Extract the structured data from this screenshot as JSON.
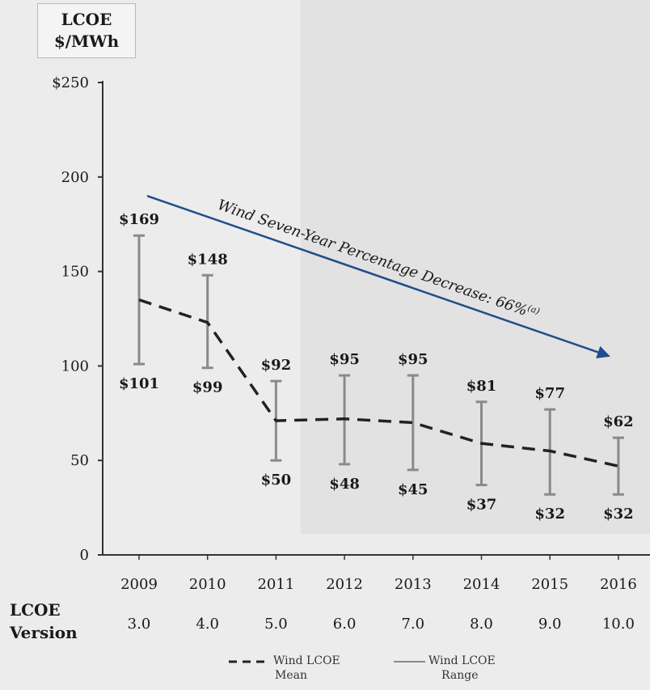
{
  "unit_label": {
    "line1": "LCOE",
    "line2": "$/MWh"
  },
  "version_title": {
    "line1": "LCOE",
    "line2": "Version"
  },
  "annotation": {
    "text": "Wind Seven-Year Percentage Decrease: 66%",
    "superscript": "(a)"
  },
  "legend": {
    "mean": {
      "line1": "Wind LCOE",
      "line2": "Mean"
    },
    "range": {
      "line1": "Wind LCOE",
      "line2": "Range"
    }
  },
  "colors": {
    "trend_arrow": "#1f4e8c",
    "mean_line": "#222222",
    "range_bar": "#8a8a8a"
  },
  "chart_data": {
    "type": "line",
    "x": [
      "2009",
      "2010",
      "2011",
      "2012",
      "2013",
      "2014",
      "2015",
      "2016"
    ],
    "versions": [
      "3.0",
      "4.0",
      "5.0",
      "6.0",
      "7.0",
      "8.0",
      "9.0",
      "10.0"
    ],
    "y_ticks": [
      "$250",
      "200",
      "150",
      "100",
      "50",
      "0"
    ],
    "ylim": [
      0,
      250
    ],
    "series": [
      {
        "name": "Wind LCOE Mean",
        "style": "dashed",
        "values": [
          135,
          123,
          71,
          72,
          70,
          59,
          55,
          47
        ]
      },
      {
        "name": "Wind LCOE Range",
        "style": "range",
        "high": [
          169,
          148,
          92,
          95,
          95,
          81,
          77,
          62
        ],
        "low": [
          101,
          99,
          50,
          48,
          45,
          37,
          32,
          32
        ],
        "high_labels": [
          "$169",
          "$148",
          "$92",
          "$95",
          "$95",
          "$81",
          "$77",
          "$62"
        ],
        "low_labels": [
          "$101",
          "$99",
          "$50",
          "$48",
          "$45",
          "$37",
          "$32",
          "$32"
        ]
      }
    ],
    "trend": {
      "start_x": "2009",
      "start_y": 190,
      "end_x": "2016",
      "end_y": 105
    }
  }
}
